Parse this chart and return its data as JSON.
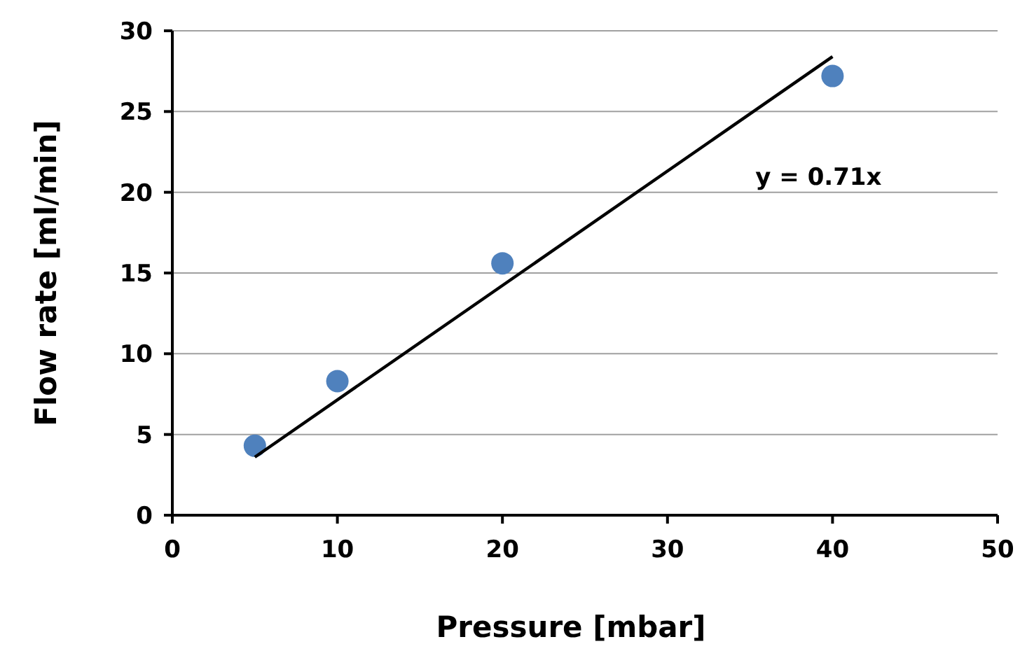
{
  "chart_data": {
    "type": "scatter",
    "xlabel": "Pressure [mbar]",
    "ylabel": "Flow rate [ml/min]",
    "x": [
      5,
      10,
      20,
      40
    ],
    "series": [
      {
        "color": "#4f81bd",
        "marker": "circle",
        "values": [
          4.3,
          8.3,
          15.6,
          27.2
        ]
      },
      {
        "type": "line",
        "color": "#000000",
        "x": [
          5,
          40
        ],
        "values": [
          3.6,
          28.4
        ]
      }
    ],
    "annotations": [
      "y = 0.71x"
    ],
    "xlim": [
      0,
      50
    ],
    "xticks": [
      0,
      10,
      20,
      30,
      40,
      50
    ],
    "ylim": [
      0,
      30
    ],
    "yticks": [
      0,
      5,
      10,
      15,
      20,
      25,
      30
    ],
    "grid": "y"
  }
}
